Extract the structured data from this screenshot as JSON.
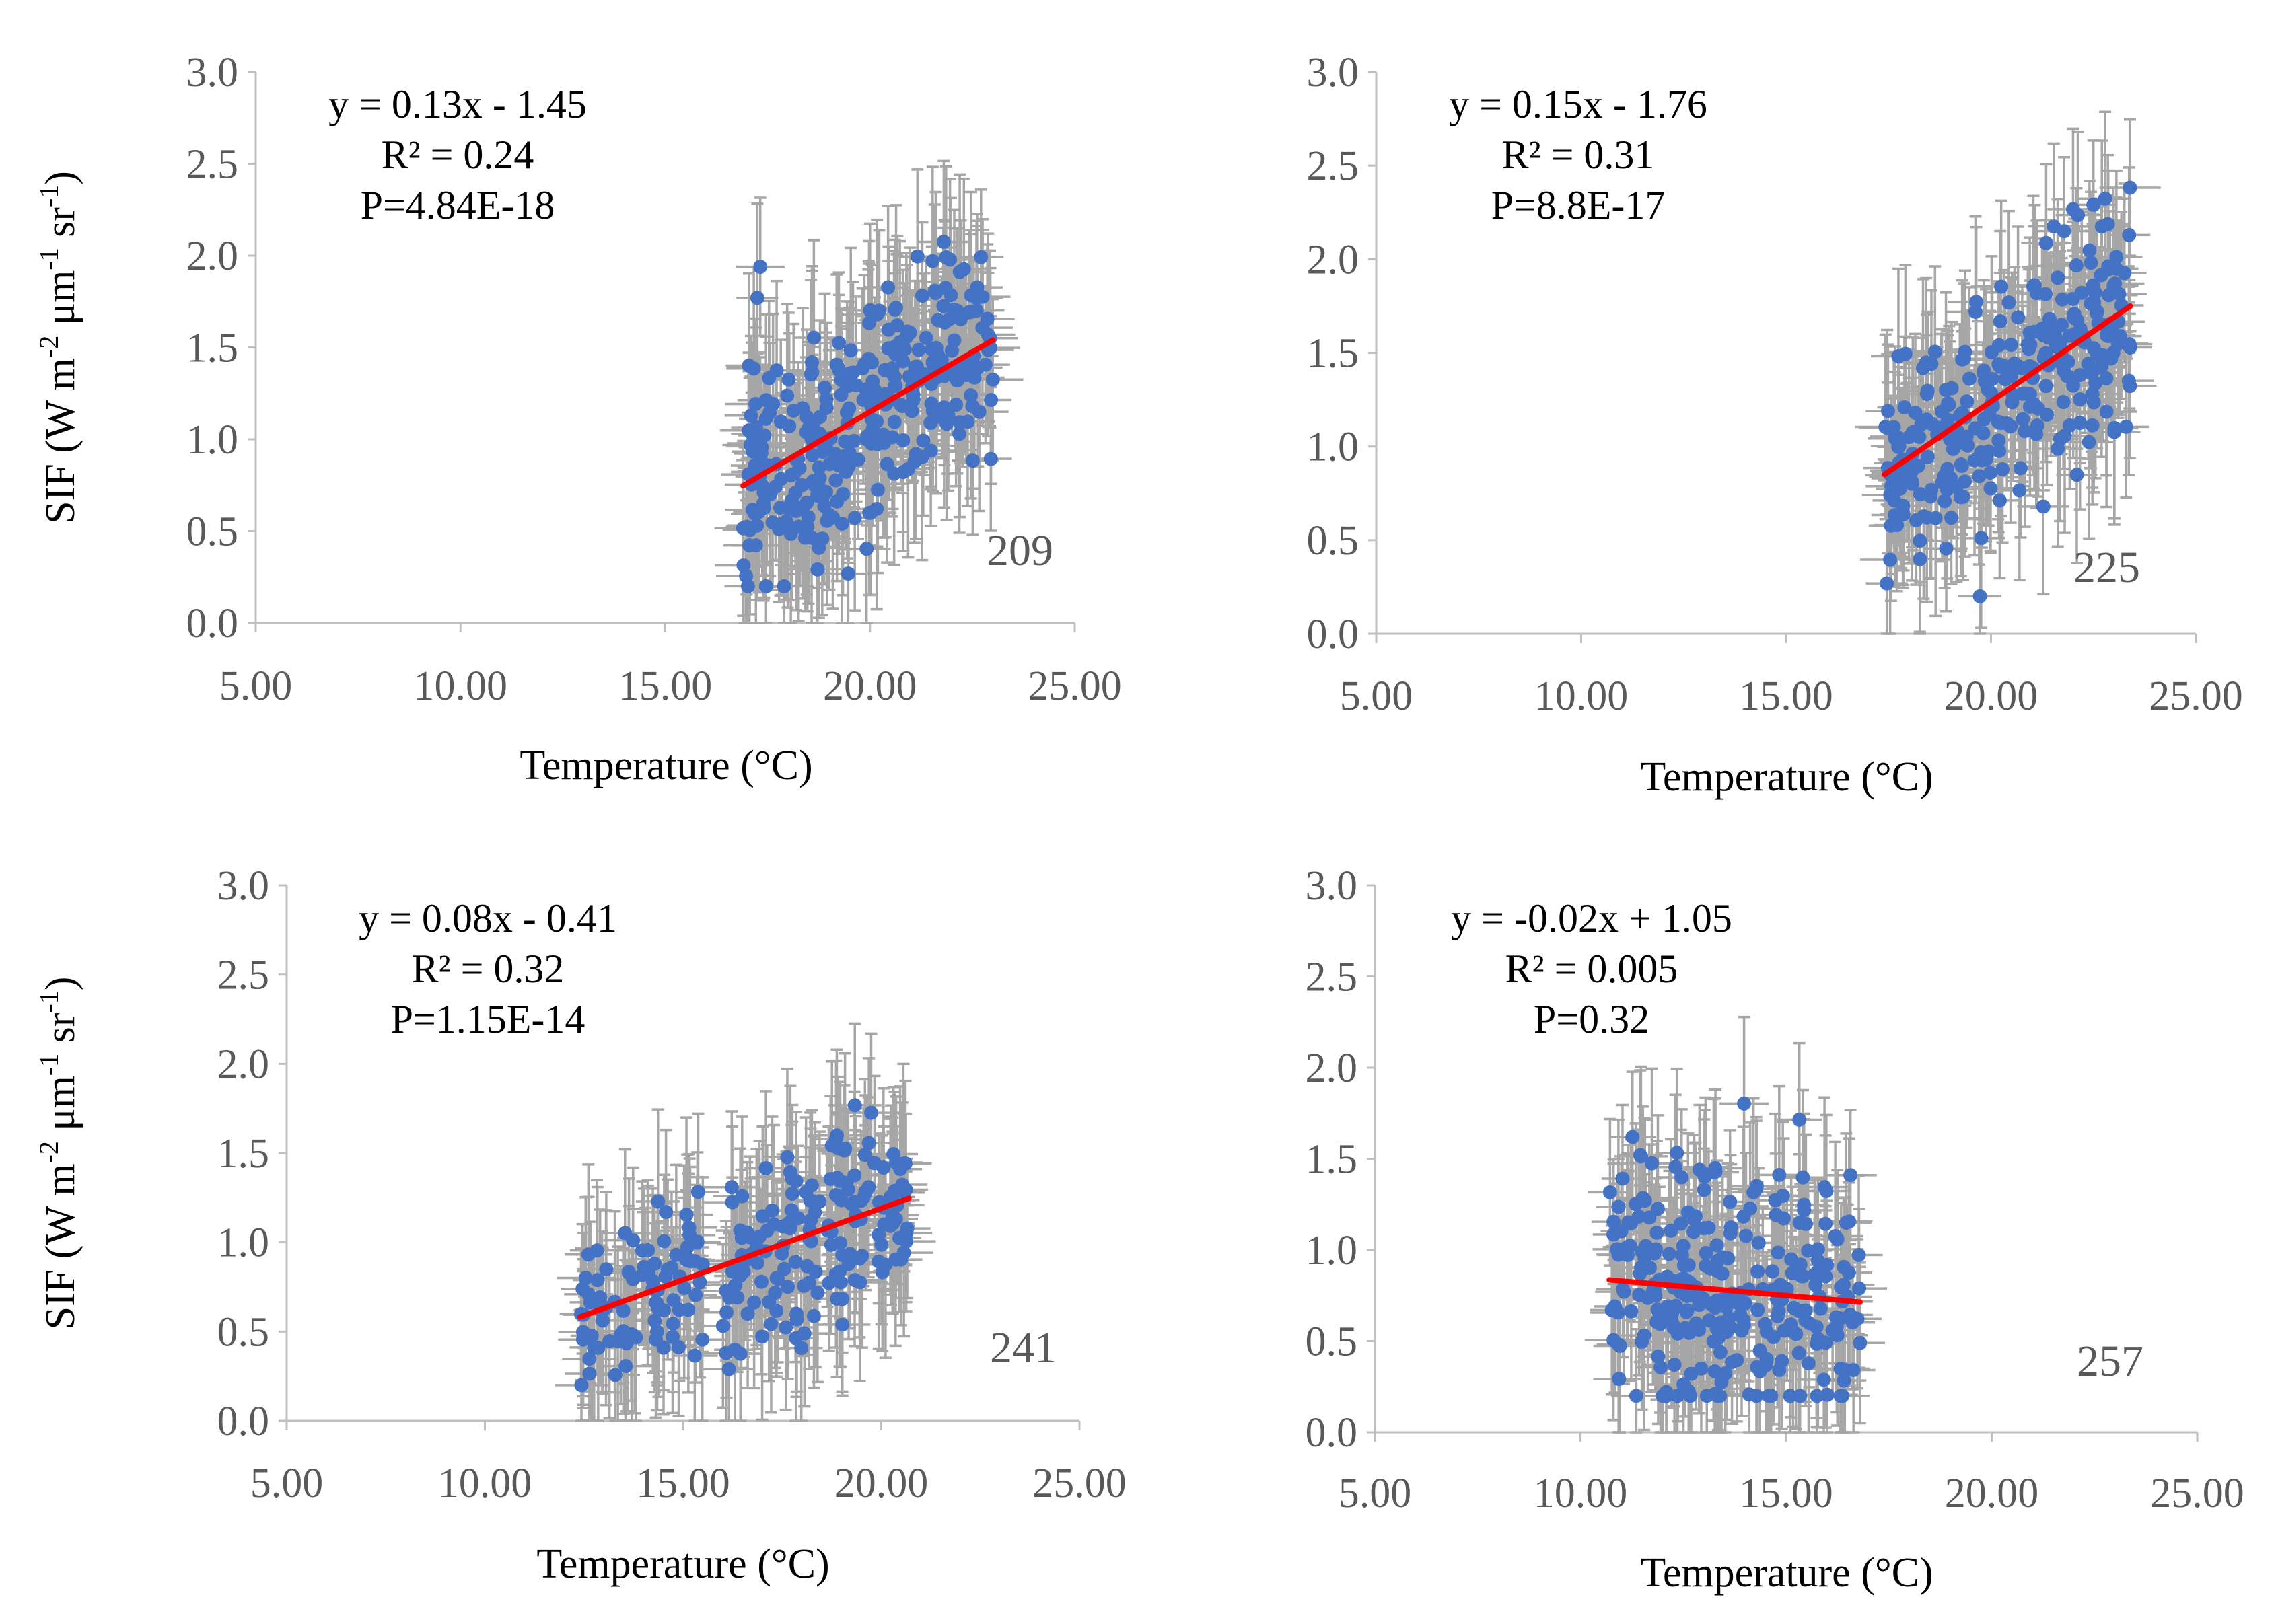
{
  "figure": {
    "panels": [
      {
        "id": "a",
        "label": "209",
        "equation": "y = 0.13x - 1.45",
        "r2": "R² = 0.24",
        "p": "P=4.84E-18",
        "slope": 0.13,
        "intercept": -1.45,
        "fit_x": [
          16.9,
          23.0
        ],
        "t_range": [
          16.9,
          23.0
        ],
        "n_points": 320,
        "error": 0.45,
        "noise": 0.32,
        "seed": 11
      },
      {
        "id": "b",
        "label": "225",
        "equation": "y = 0.15x - 1.76",
        "r2": "R² = 0.31",
        "p": "P=8.8E-17",
        "slope": 0.15,
        "intercept": -1.76,
        "fit_x": [
          17.4,
          23.4
        ],
        "t_range": [
          17.4,
          23.4
        ],
        "n_points": 300,
        "error": 0.42,
        "noise": 0.28,
        "seed": 23
      },
      {
        "id": "c",
        "label": "241",
        "equation": "y = 0.08x - 0.41",
        "r2": "R² = 0.32",
        "p": "P=1.15E-14",
        "slope": 0.08,
        "intercept": -0.41,
        "fit_x": [
          12.4,
          20.7
        ],
        "clusters": [
          [
            12.4,
            15.5,
            0.3
          ],
          [
            16.0,
            20.7,
            0.7
          ]
        ],
        "n_points": 260,
        "error": 0.45,
        "noise": 0.26,
        "seed": 37
      },
      {
        "id": "d",
        "label": "257",
        "equation": "y = -0.02x + 1.05",
        "r2": "R² = 0.005",
        "p": "P=0.32",
        "slope": -0.02,
        "intercept": 1.05,
        "fit_x": [
          10.7,
          16.8
        ],
        "t_range": [
          10.7,
          16.8
        ],
        "n_points": 280,
        "error": 0.42,
        "noise": 0.35,
        "seed": 51
      }
    ],
    "x_ticks": [
      "5.00",
      "10.00",
      "15.00",
      "20.00",
      "25.00"
    ],
    "y_ticks": [
      "0.0",
      "0.5",
      "1.0",
      "1.5",
      "2.0",
      "2.5",
      "3.0"
    ],
    "xlabel": "Temperature (°C)",
    "ylabel": {
      "main": "SIF (W m",
      "sup1": "-2",
      "mid": " μm",
      "sup2": "-1",
      "end": " sr",
      "sup3": "-1",
      "close": ")"
    }
  },
  "chart_data": [
    {
      "type": "scatter",
      "title": "209",
      "xlabel": "Temperature (°C)",
      "ylabel": "SIF (W m-2 μm-1 sr-1)",
      "xlim": [
        5,
        25
      ],
      "ylim": [
        0,
        3
      ],
      "trendline": {
        "equation": "y = 0.13x - 1.45",
        "r2": 0.24,
        "p": "4.84E-18",
        "x": [
          16.9,
          23.0
        ]
      },
      "x_range": [
        16.9,
        23.0
      ],
      "y_range": [
        0.3,
        2.5
      ],
      "error_bars": true
    },
    {
      "type": "scatter",
      "title": "225",
      "xlabel": "Temperature (°C)",
      "ylabel": "SIF (W m-2 μm-1 sr-1)",
      "xlim": [
        5,
        25
      ],
      "ylim": [
        0,
        3
      ],
      "trendline": {
        "equation": "y = 0.15x - 1.76",
        "r2": 0.31,
        "p": "8.8E-17",
        "x": [
          17.4,
          23.4
        ]
      },
      "x_range": [
        17.4,
        23.4
      ],
      "y_range": [
        0.2,
        2.2
      ],
      "error_bars": true
    },
    {
      "type": "scatter",
      "title": "241",
      "xlabel": "Temperature (°C)",
      "ylabel": "SIF (W m-2 μm-1 sr-1)",
      "xlim": [
        5,
        25
      ],
      "ylim": [
        0,
        3
      ],
      "trendline": {
        "equation": "y = 0.08x - 0.41",
        "r2": 0.32,
        "p": "1.15E-14",
        "x": [
          12.4,
          20.7
        ]
      },
      "x_range": [
        12.4,
        20.7
      ],
      "y_range": [
        0.3,
        1.85
      ],
      "error_bars": true
    },
    {
      "type": "scatter",
      "title": "257",
      "xlabel": "Temperature (°C)",
      "ylabel": "SIF (W m-2 μm-1 sr-1)",
      "xlim": [
        5,
        25
      ],
      "ylim": [
        0,
        3
      ],
      "trendline": {
        "equation": "y = -0.02x + 1.05",
        "r2": 0.005,
        "p": "0.32",
        "x": [
          10.7,
          16.8
        ]
      },
      "x_range": [
        10.7,
        16.8
      ],
      "y_range": [
        0.2,
        2.05
      ],
      "error_bars": true
    }
  ]
}
